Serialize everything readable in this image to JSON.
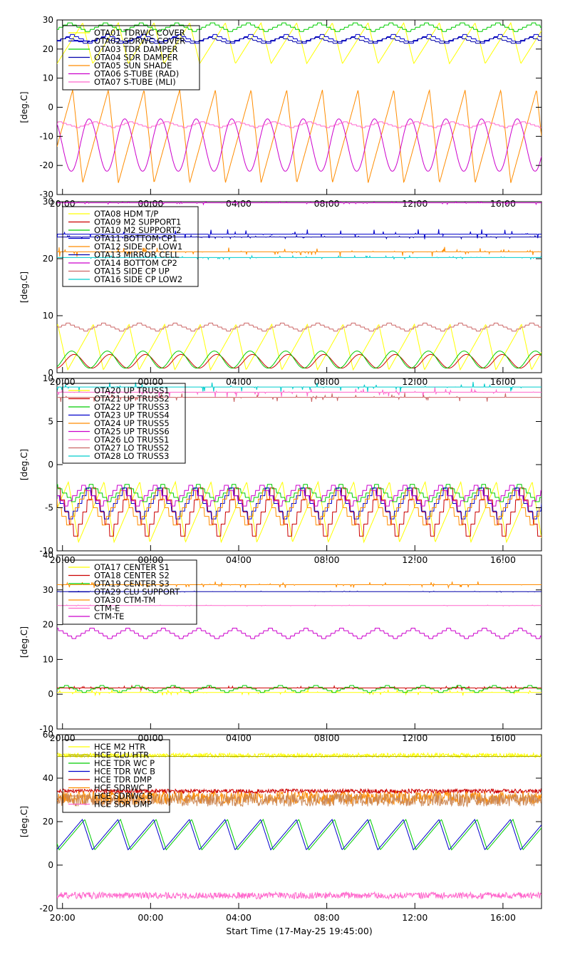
{
  "xlabel": "Start Time (17-May-25 19:45:00)",
  "x_tick_labels": [
    "20:00",
    "00:00",
    "04:00",
    "08:00",
    "12:00",
    "16:00"
  ],
  "x_tick_hours": [
    0.25,
    4.25,
    8.25,
    12.25,
    16.25,
    20.25
  ],
  "x_range_hours": [
    0,
    22
  ],
  "chart_data": [
    {
      "type": "line",
      "ylabel": "[deg.C]",
      "ylim": [
        -30,
        30
      ],
      "y_ticks": [
        -30,
        -20,
        -10,
        0,
        10,
        20,
        30
      ],
      "legend_position": "top-left",
      "series": [
        {
          "name": "OTA01 TDRWC COVER",
          "color": "#ffff00",
          "pattern": "sawtooth",
          "base": 22,
          "amp": 7,
          "period": 1.62
        },
        {
          "name": "OTA02 SDRWC COVER",
          "color": "#0000cc",
          "pattern": "step",
          "base": 23.5,
          "amp": 1.5,
          "period": 1.62
        },
        {
          "name": "OTA03 TDR DAMPER",
          "color": "#00cc00",
          "pattern": "step",
          "base": 27.5,
          "amp": 1.5,
          "period": 1.62
        },
        {
          "name": "OTA04 SDR DAMPER",
          "color": "#0000aa",
          "pattern": "step",
          "base": 23,
          "amp": 1,
          "period": 1.62
        },
        {
          "name": "OTA05 SUN SHADE",
          "color": "#ff8c00",
          "pattern": "sawtooth",
          "base": -10,
          "amp": 16,
          "period": 1.62
        },
        {
          "name": "OTA06 S-TUBE (RAD)",
          "color": "#cc00cc",
          "pattern": "wave",
          "base": -13,
          "amp": 9,
          "period": 1.62
        },
        {
          "name": "OTA07 S-TUBE (MLI)",
          "color": "#ff66cc",
          "pattern": "step",
          "base": -6,
          "amp": 1,
          "period": 1.62
        }
      ]
    },
    {
      "type": "line",
      "ylabel": "[deg.C]",
      "ylim": [
        0,
        30
      ],
      "y_ticks": [
        0,
        10,
        20,
        30
      ],
      "legend_position": "top-left",
      "series": [
        {
          "name": "OTA08 HDM T/P",
          "color": "#ffff00",
          "pattern": "sawtooth",
          "base": 4.5,
          "amp": 4,
          "period": 1.62
        },
        {
          "name": "OTA09 M2 SUPPORT1",
          "color": "#cc0000",
          "pattern": "wave",
          "base": 2,
          "amp": 1.2,
          "period": 1.62
        },
        {
          "name": "OTA10 M2 SUPPORT2",
          "color": "#00cc00",
          "pattern": "wave",
          "base": 2.3,
          "amp": 1.5,
          "period": 1.62
        },
        {
          "name": "OTA11 BOTTOM CP1",
          "color": "#0000cc",
          "pattern": "flat",
          "base": 24.3,
          "amp": 0.3,
          "period": 1.62
        },
        {
          "name": "OTA12 SIDE CP LOW1",
          "color": "#ff8c00",
          "pattern": "flat",
          "base": 21.2,
          "amp": 0.3,
          "period": 1.62
        },
        {
          "name": "OTA13 MIRROR CELL",
          "color": "#0000aa",
          "pattern": "flat",
          "base": 23.8,
          "amp": 0.1,
          "period": 1.62
        },
        {
          "name": "OTA14 BOTTOM CP2",
          "color": "#cc00cc",
          "pattern": "flat",
          "base": 29.8,
          "amp": 0.1,
          "period": 1.62
        },
        {
          "name": "OTA15 SIDE CP UP",
          "color": "#cc6666",
          "pattern": "step",
          "base": 8,
          "amp": 0.7,
          "period": 1.62
        },
        {
          "name": "OTA16 SIDE CP LOW2",
          "color": "#00cccc",
          "pattern": "flat",
          "base": 20.2,
          "amp": 0.1,
          "period": 1.62
        }
      ]
    },
    {
      "type": "line",
      "ylabel": "[deg.C]",
      "ylim": [
        -10,
        10
      ],
      "y_ticks": [
        -10,
        -5,
        0,
        5,
        10
      ],
      "legend_position": "top-left",
      "series": [
        {
          "name": "OTA20 UP TRUSS1",
          "color": "#ffff00",
          "pattern": "sawtooth",
          "base": -5.5,
          "amp": 3.5,
          "period": 1.62
        },
        {
          "name": "OTA21 UP TRUSS2",
          "color": "#cc0000",
          "pattern": "step",
          "base": -5.5,
          "amp": 2.8,
          "period": 1.62
        },
        {
          "name": "OTA22 UP TRUSS3",
          "color": "#00cc00",
          "pattern": "step",
          "base": -3.3,
          "amp": 1,
          "period": 1.62
        },
        {
          "name": "OTA23 UP TRUSS4",
          "color": "#0000cc",
          "pattern": "step",
          "base": -4.5,
          "amp": 1.8,
          "period": 1.62
        },
        {
          "name": "OTA24 UP TRUSS5",
          "color": "#ff8c00",
          "pattern": "step",
          "base": -5,
          "amp": 2,
          "period": 1.62
        },
        {
          "name": "OTA25 UP TRUSS6",
          "color": "#cc00cc",
          "pattern": "step",
          "base": -3.6,
          "amp": 1.2,
          "period": 1.62
        },
        {
          "name": "OTA26 LO TRUSS1",
          "color": "#ff66cc",
          "pattern": "flat",
          "base": 8.4,
          "amp": 0.2,
          "period": 1.62
        },
        {
          "name": "OTA27 LO TRUSS2",
          "color": "#cc6666",
          "pattern": "flat",
          "base": 7.8,
          "amp": 0.2,
          "period": 1.62
        },
        {
          "name": "OTA28 LO TRUSS3",
          "color": "#00cccc",
          "pattern": "flat",
          "base": 9.0,
          "amp": 0.2,
          "period": 1.62
        }
      ]
    },
    {
      "type": "line",
      "ylabel": "[deg.C]",
      "ylim": [
        -10,
        40
      ],
      "y_ticks": [
        -10,
        0,
        10,
        20,
        30,
        40
      ],
      "legend_position": "top-left",
      "series": [
        {
          "name": "OTA17 CENTER S1",
          "color": "#ffff00",
          "pattern": "flat",
          "base": 0.5,
          "amp": 0.3,
          "period": 1.62
        },
        {
          "name": "OTA18 CENTER S2",
          "color": "#cc0000",
          "pattern": "flat",
          "base": 1.8,
          "amp": 0.2,
          "period": 1.62
        },
        {
          "name": "OTA19 CENTER S3",
          "color": "#00cc00",
          "pattern": "step",
          "base": 1.5,
          "amp": 1,
          "period": 1.62
        },
        {
          "name": "OTA29 CLU SUPPORT",
          "color": "#0000aa",
          "pattern": "flat",
          "base": 29.5,
          "amp": 0.05,
          "period": 1.62
        },
        {
          "name": "OTA30 CTM-TM",
          "color": "#ff8c00",
          "pattern": "flat",
          "base": 31.5,
          "amp": 0.3,
          "period": 1.62
        },
        {
          "name": "CTM-E",
          "color": "#ff66cc",
          "pattern": "flat",
          "base": 25.5,
          "amp": 0.05,
          "period": 1.62
        },
        {
          "name": "CTM-TE",
          "color": "#cc00cc",
          "pattern": "step",
          "base": 17.5,
          "amp": 1.5,
          "period": 1.62
        }
      ]
    },
    {
      "type": "line",
      "ylabel": "[deg.C]",
      "ylim": [
        -20,
        60
      ],
      "y_ticks": [
        -20,
        0,
        20,
        40,
        60
      ],
      "legend_position": "top-left",
      "series": [
        {
          "name": "HCE M2 HTR",
          "color": "#ffff00",
          "pattern": "noisy",
          "base": 50.5,
          "amp": 1,
          "period": 1.62
        },
        {
          "name": "HCE CLU HTR",
          "color": "#aaaa00",
          "pattern": "flat",
          "base": 50,
          "amp": 0.1,
          "period": 1.62
        },
        {
          "name": "HCE TDR WC P",
          "color": "#00cc00",
          "pattern": "sawtooth",
          "base": 14,
          "amp": 7,
          "period": 1.62
        },
        {
          "name": "HCE TDR WC B",
          "color": "#0000cc",
          "pattern": "sawtooth",
          "base": 14,
          "amp": 7,
          "period": 1.62
        },
        {
          "name": "HCE TDR DMP",
          "color": "#cc0000",
          "pattern": "noisy",
          "base": 34,
          "amp": 1,
          "period": 1.62
        },
        {
          "name": "HCE SDRWC P",
          "color": "#ff8c00",
          "pattern": "noisy",
          "base": 31,
          "amp": 3,
          "period": 1.62
        },
        {
          "name": "HCE SDRWC B",
          "color": "#cc8855",
          "pattern": "noisy",
          "base": 30,
          "amp": 3,
          "period": 1.62
        },
        {
          "name": "HCE SDR DMP",
          "color": "#ff66cc",
          "pattern": "noisy",
          "base": -14,
          "amp": 1.5,
          "period": 1.62
        }
      ]
    }
  ]
}
